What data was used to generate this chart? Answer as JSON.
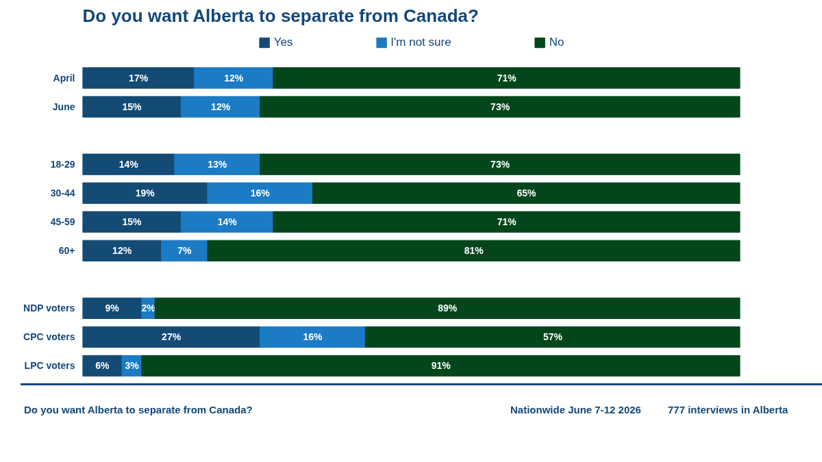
{
  "chart_data": {
    "type": "bar",
    "orientation": "horizontal",
    "stacked": true,
    "title": "Do you want Alberta to separate from Canada?",
    "categories": [
      "April",
      "June",
      null,
      "18-29",
      "30-44",
      "45-59",
      "60+",
      null,
      "NDP voters",
      "CPC voters",
      "LPC voters"
    ],
    "series": [
      {
        "name": "Yes",
        "color": "#134b75",
        "values": [
          17,
          15,
          null,
          14,
          19,
          15,
          12,
          null,
          9,
          27,
          6
        ],
        "value_labels": [
          "17%",
          "15%",
          null,
          "14%",
          "19%",
          "15%",
          "12%",
          null,
          "9%",
          "27%",
          "6%"
        ]
      },
      {
        "name": "I'm not sure",
        "color": "#1b7bc4",
        "values": [
          12,
          12,
          null,
          13,
          16,
          14,
          7,
          null,
          2,
          16,
          3
        ],
        "value_labels": [
          "12%",
          "12%",
          null,
          "13%",
          "16%",
          "14%",
          "7%",
          null,
          "2%",
          "16%",
          "3%"
        ]
      },
      {
        "name": "No",
        "color": "#03461b",
        "values": [
          71,
          73,
          null,
          73,
          65,
          71,
          81,
          null,
          89,
          57,
          91
        ],
        "value_labels": [
          "71%",
          "73%",
          null,
          "73%",
          "65%",
          "71%",
          "81%",
          null,
          "89%",
          "57%",
          "91%"
        ]
      }
    ],
    "legend": "top",
    "grid": false,
    "annotations": [
      "Do you want Alberta to separate from Canada?",
      "Nationwide June 7-12 2026",
      "777 interviews in Alberta"
    ]
  }
}
